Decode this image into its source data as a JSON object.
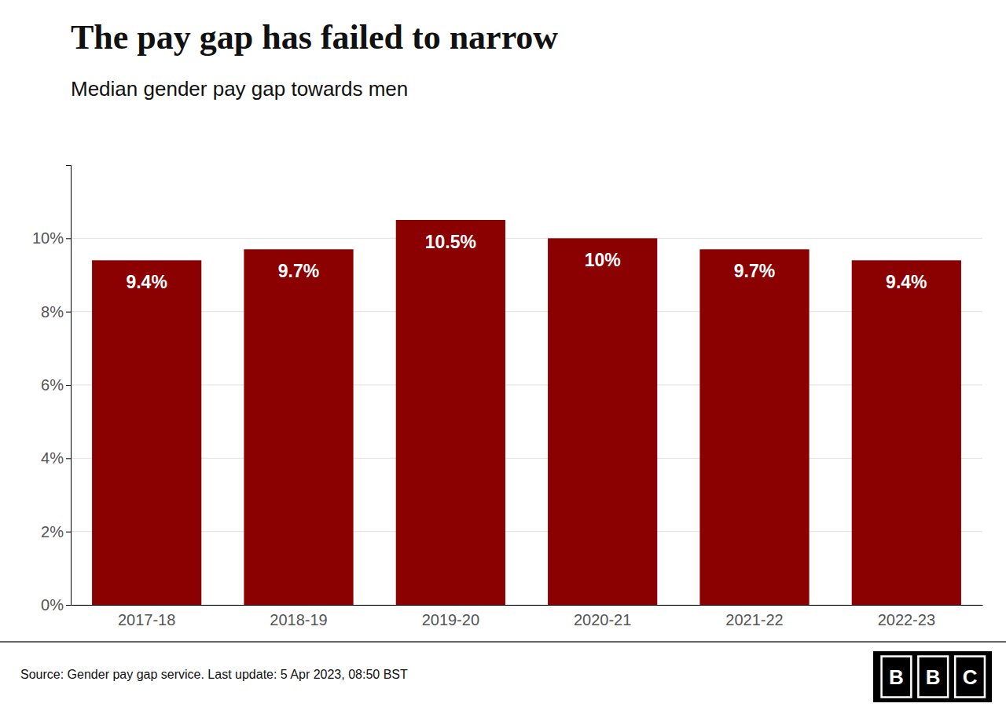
{
  "chart_data": {
    "type": "bar",
    "title": "The pay gap has failed to narrow",
    "subtitle": "Median gender pay gap towards men",
    "categories": [
      "2017-18",
      "2018-19",
      "2019-20",
      "2020-21",
      "2021-22",
      "2022-23"
    ],
    "values": [
      9.4,
      9.7,
      10.5,
      10.0,
      9.7,
      9.4
    ],
    "value_labels": [
      "9.4%",
      "9.7%",
      "10.5%",
      "10%",
      "9.7%",
      "9.4%"
    ],
    "color": "#8B0000",
    "ylim": [
      0,
      12
    ],
    "yticks": [
      {
        "value": 0,
        "label": "0%"
      },
      {
        "value": 2,
        "label": "2%"
      },
      {
        "value": 4,
        "label": "4%"
      },
      {
        "value": 6,
        "label": "6%"
      },
      {
        "value": 8,
        "label": "8%"
      },
      {
        "value": 10,
        "label": "10%"
      }
    ],
    "grid": true,
    "data_labels": true,
    "source": "Source: Gender pay gap service. Last update: 5 Apr 2023, 08:50 BST",
    "annotations": [
      "B",
      "B",
      "C"
    ]
  }
}
